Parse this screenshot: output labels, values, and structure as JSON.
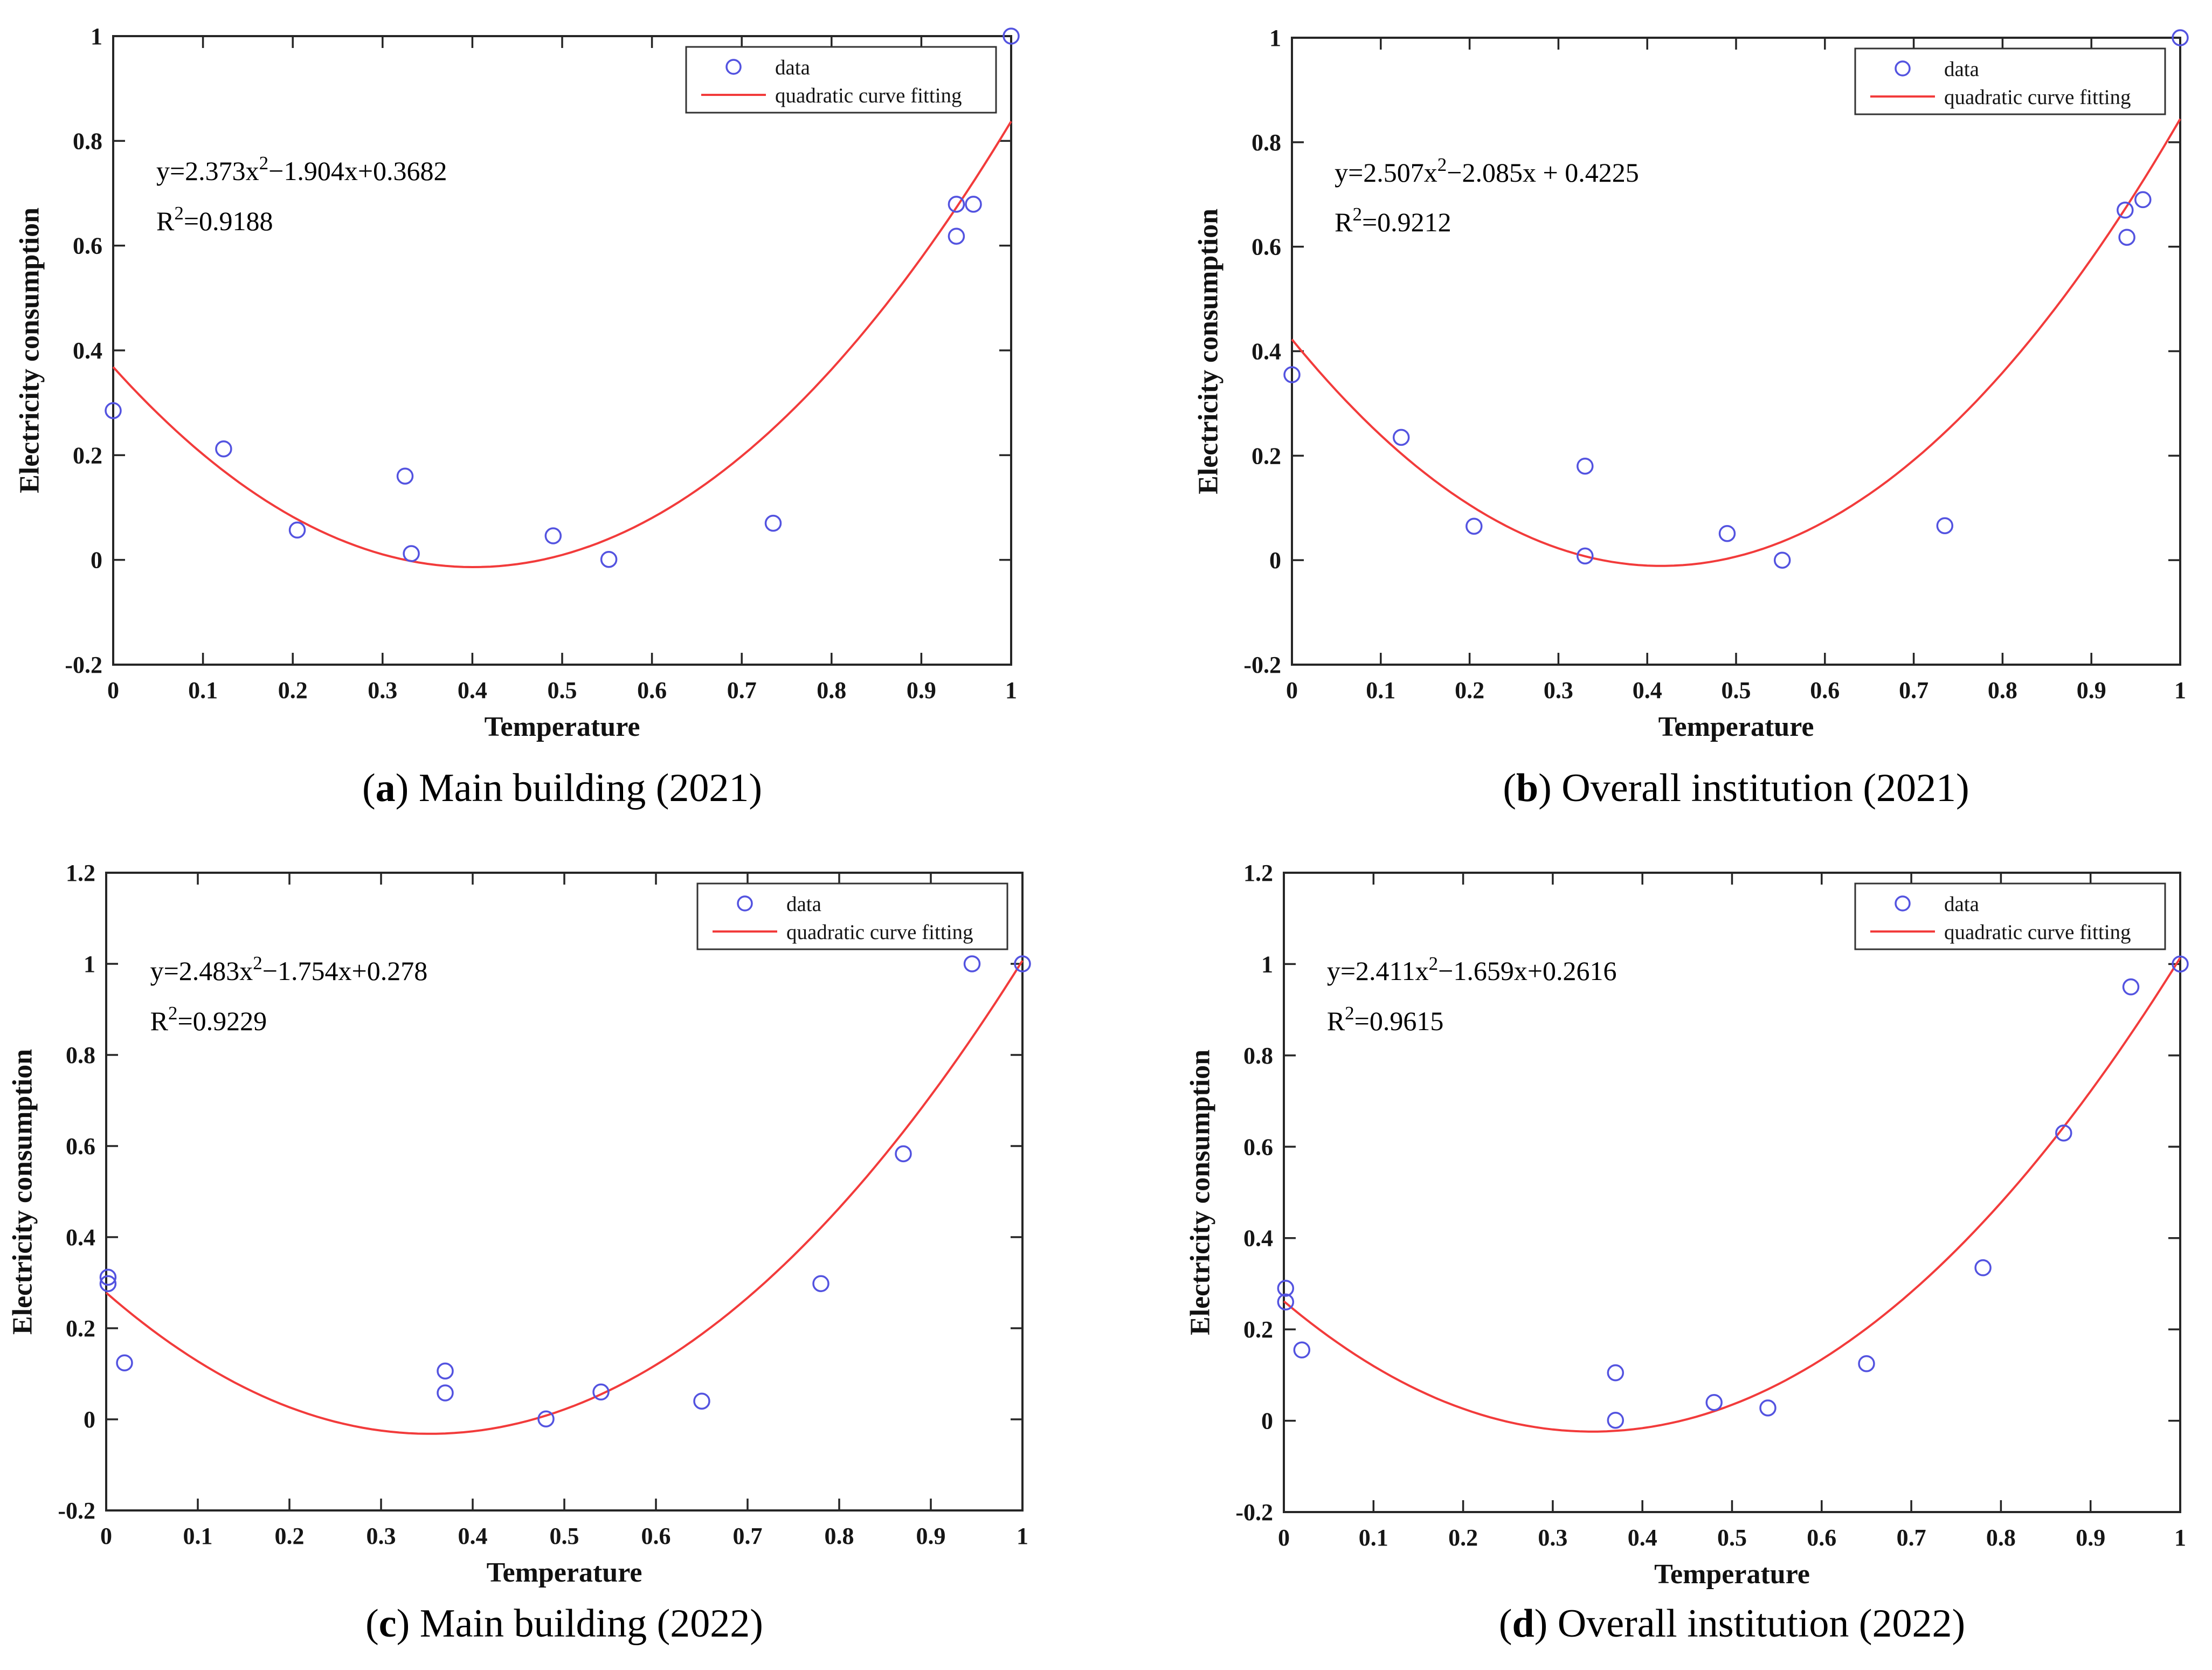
{
  "figure": {
    "background": "#ffffff",
    "colors": {
      "marker": "#5353e0",
      "curve": "#f23b3b",
      "axis": "#262626",
      "text": "#000000",
      "legend_border": "#333333",
      "legend_background": "#ffffff"
    }
  },
  "chart_data": [
    {
      "type": "scatter",
      "panel": "a",
      "caption_open": "(",
      "caption_letter": "a",
      "caption_rest": ") Main building (2021)",
      "annotation": {
        "eq_prefix": "y=2.373x",
        "eq_sup": "2",
        "eq_suffix": "−1.904x+0.3682",
        "r2_base": "R",
        "r2_sup": "2",
        "r2_suffix": "=0.9188"
      },
      "xlabel": "Temperature",
      "ylabel": "Electricity consumption",
      "xlim": [
        0,
        1
      ],
      "ylim": [
        -0.2,
        1
      ],
      "xticks": [
        0,
        0.1,
        0.2,
        0.3,
        0.4,
        0.5,
        0.6,
        0.7,
        0.8,
        0.9,
        1
      ],
      "xtick_labels": [
        "0",
        "0.1",
        "0.2",
        "0.3",
        "0.4",
        "0.5",
        "0.6",
        "0.7",
        "0.8",
        "0.9",
        "1"
      ],
      "yticks": [
        -0.2,
        0,
        0.2,
        0.4,
        0.6,
        0.8,
        1
      ],
      "ytick_labels": [
        "-0.2",
        "0",
        "0.2",
        "0.4",
        "0.6",
        "0.8",
        "1"
      ],
      "legend": [
        "data",
        "quadratic curve fitting"
      ],
      "legend_position": "top-right",
      "grid": false,
      "series": [
        {
          "name": "data",
          "kind": "scatter",
          "marker": "circle",
          "points": [
            [
              0.0,
              0.285
            ],
            [
              0.123,
              0.212
            ],
            [
              0.205,
              0.057
            ],
            [
              0.325,
              0.16
            ],
            [
              0.332,
              0.012
            ],
            [
              0.49,
              0.046
            ],
            [
              0.552,
              0.001
            ],
            [
              0.735,
              0.07
            ],
            [
              0.939,
              0.679
            ],
            [
              0.939,
              0.618
            ],
            [
              0.958,
              0.679
            ],
            [
              1.0,
              1.0
            ]
          ]
        },
        {
          "name": "quadratic curve fitting",
          "kind": "line",
          "coeffs": [
            2.373,
            -1.904,
            0.3682
          ]
        }
      ]
    },
    {
      "type": "scatter",
      "panel": "b",
      "caption_open": "(",
      "caption_letter": "b",
      "caption_rest": ") Overall institution (2021)",
      "annotation": {
        "eq_prefix": "y=2.507x",
        "eq_sup": "2",
        "eq_suffix": "−2.085x + 0.4225",
        "r2_base": "R",
        "r2_sup": "2",
        "r2_suffix": "=0.9212"
      },
      "xlabel": "Temperature",
      "ylabel": "Electricity consumption",
      "xlim": [
        0,
        1
      ],
      "ylim": [
        -0.2,
        1
      ],
      "xticks": [
        0,
        0.1,
        0.2,
        0.3,
        0.4,
        0.5,
        0.6,
        0.7,
        0.8,
        0.9,
        1
      ],
      "xtick_labels": [
        "0",
        "0.1",
        "0.2",
        "0.3",
        "0.4",
        "0.5",
        "0.6",
        "0.7",
        "0.8",
        "0.9",
        "1"
      ],
      "yticks": [
        -0.2,
        0,
        0.2,
        0.4,
        0.6,
        0.8,
        1
      ],
      "ytick_labels": [
        "-0.2",
        "0",
        "0.2",
        "0.4",
        "0.6",
        "0.8",
        "1"
      ],
      "legend": [
        "data",
        "quadratic curve fitting"
      ],
      "legend_position": "top-right",
      "grid": false,
      "series": [
        {
          "name": "data",
          "kind": "scatter",
          "marker": "circle",
          "points": [
            [
              0.0,
              0.355
            ],
            [
              0.123,
              0.235
            ],
            [
              0.205,
              0.065
            ],
            [
              0.33,
              0.18
            ],
            [
              0.33,
              0.008
            ],
            [
              0.49,
              0.051
            ],
            [
              0.552,
              0.0
            ],
            [
              0.735,
              0.066
            ],
            [
              0.938,
              0.67
            ],
            [
              0.94,
              0.618
            ],
            [
              0.958,
              0.69
            ],
            [
              1.0,
              1.0
            ]
          ]
        },
        {
          "name": "quadratic curve fitting",
          "kind": "line",
          "coeffs": [
            2.507,
            -2.085,
            0.4225
          ]
        }
      ]
    },
    {
      "type": "scatter",
      "panel": "c",
      "caption_open": "(",
      "caption_letter": "c",
      "caption_rest": ") Main building (2022)",
      "annotation": {
        "eq_prefix": "y=2.483x",
        "eq_sup": "2",
        "eq_suffix": "−1.754x+0.278",
        "r2_base": "R",
        "r2_sup": "2",
        "r2_suffix": "=0.9229"
      },
      "xlabel": "Temperature",
      "ylabel": "Electricity consumption",
      "xlim": [
        0,
        1
      ],
      "ylim": [
        -0.2,
        1.2
      ],
      "xticks": [
        0,
        0.1,
        0.2,
        0.3,
        0.4,
        0.5,
        0.6,
        0.7,
        0.8,
        0.9,
        1
      ],
      "xtick_labels": [
        "0",
        "0.1",
        "0.2",
        "0.3",
        "0.4",
        "0.5",
        "0.6",
        "0.7",
        "0.8",
        "0.9",
        "1"
      ],
      "yticks": [
        -0.2,
        0,
        0.2,
        0.4,
        0.6,
        0.8,
        1,
        1.2
      ],
      "ytick_labels": [
        "-0.2",
        "0",
        "0.2",
        "0.4",
        "0.6",
        "0.8",
        "1",
        "1.2"
      ],
      "legend": [
        "data",
        "quadratic curve fitting"
      ],
      "legend_position": "top-right",
      "grid": false,
      "series": [
        {
          "name": "data",
          "kind": "scatter",
          "marker": "circle",
          "points": [
            [
              0.002,
              0.312
            ],
            [
              0.002,
              0.298
            ],
            [
              0.02,
              0.124
            ],
            [
              0.37,
              0.106
            ],
            [
              0.37,
              0.058
            ],
            [
              0.48,
              0.001
            ],
            [
              0.54,
              0.06
            ],
            [
              0.65,
              0.04
            ],
            [
              0.78,
              0.298
            ],
            [
              0.87,
              0.583
            ],
            [
              0.945,
              1.0
            ],
            [
              1.0,
              1.0
            ]
          ]
        },
        {
          "name": "quadratic curve fitting",
          "kind": "line",
          "coeffs": [
            2.483,
            -1.754,
            0.278
          ]
        }
      ]
    },
    {
      "type": "scatter",
      "panel": "d",
      "caption_open": "(",
      "caption_letter": "d",
      "caption_rest": ") Overall institution (2022)",
      "annotation": {
        "eq_prefix": "y=2.411x",
        "eq_sup": "2",
        "eq_suffix": "−1.659x+0.2616",
        "r2_base": "R",
        "r2_sup": "2",
        "r2_suffix": "=0.9615"
      },
      "xlabel": "Temperature",
      "ylabel": "Electricity consumption",
      "xlim": [
        0,
        1
      ],
      "ylim": [
        -0.2,
        1.2
      ],
      "xticks": [
        0,
        0.1,
        0.2,
        0.3,
        0.4,
        0.5,
        0.6,
        0.7,
        0.8,
        0.9,
        1
      ],
      "xtick_labels": [
        "0",
        "0.1",
        "0.2",
        "0.3",
        "0.4",
        "0.5",
        "0.6",
        "0.7",
        "0.8",
        "0.9",
        "1"
      ],
      "yticks": [
        -0.2,
        0,
        0.2,
        0.4,
        0.6,
        0.8,
        1,
        1.2
      ],
      "ytick_labels": [
        "-0.2",
        "0",
        "0.2",
        "0.4",
        "0.6",
        "0.8",
        "1",
        "1.2"
      ],
      "legend": [
        "data",
        "quadratic curve fitting"
      ],
      "legend_position": "top-right",
      "grid": false,
      "series": [
        {
          "name": "data",
          "kind": "scatter",
          "marker": "circle",
          "points": [
            [
              0.002,
              0.29
            ],
            [
              0.002,
              0.26
            ],
            [
              0.02,
              0.155
            ],
            [
              0.37,
              0.105
            ],
            [
              0.37,
              0.001
            ],
            [
              0.48,
              0.04
            ],
            [
              0.54,
              0.028
            ],
            [
              0.65,
              0.125
            ],
            [
              0.78,
              0.335
            ],
            [
              0.87,
              0.63
            ],
            [
              0.945,
              0.95
            ],
            [
              1.0,
              1.0
            ]
          ]
        },
        {
          "name": "quadratic curve fitting",
          "kind": "line",
          "coeffs": [
            2.411,
            -1.659,
            0.2616
          ]
        }
      ]
    }
  ]
}
